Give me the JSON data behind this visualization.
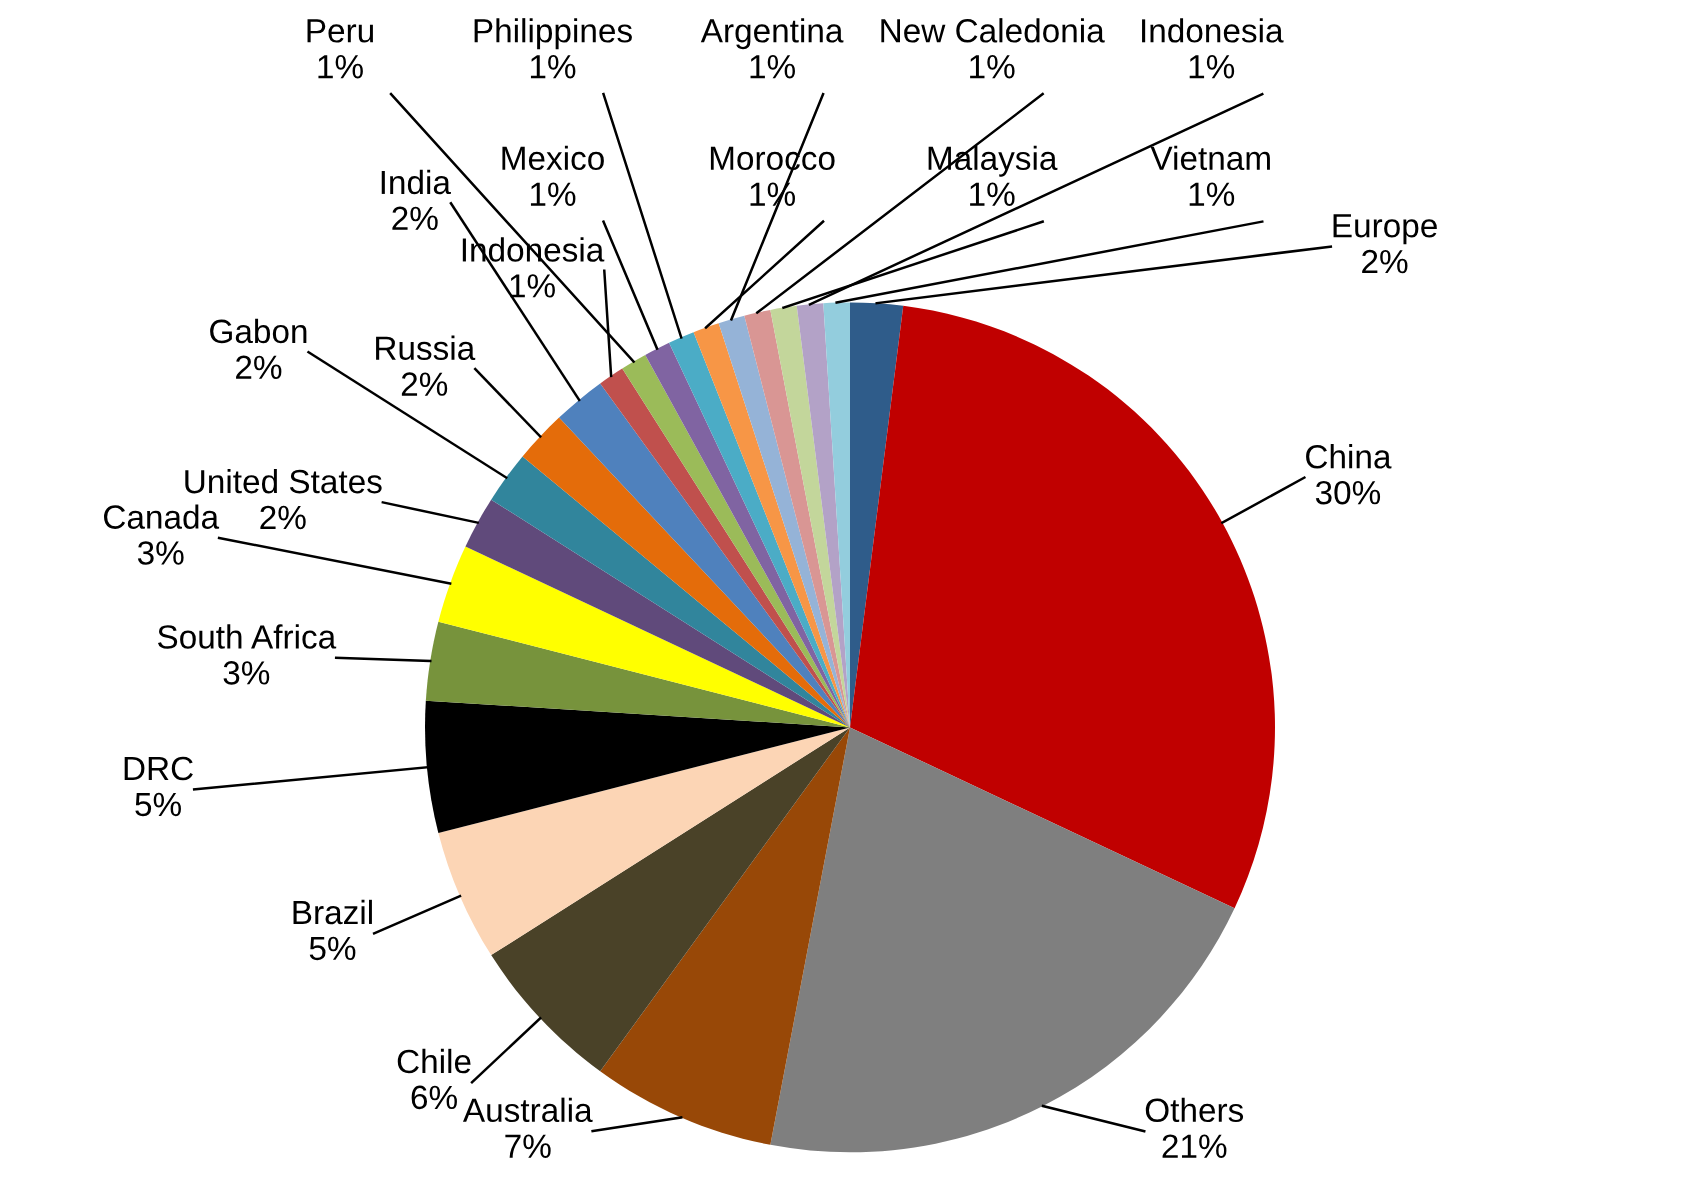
{
  "chart_data": {
    "type": "pie",
    "categories": [
      "Europe",
      "China",
      "Others",
      "Australia",
      "Chile",
      "Brazil",
      "DRC",
      "South Africa",
      "Canada",
      "United States",
      "Gabon",
      "Russia",
      "India",
      "Indonesia",
      "Peru",
      "Mexico",
      "Philippines",
      "Morocco",
      "Argentina",
      "New Caledonia",
      "Malaysia",
      "Indonesia",
      "Vietnam"
    ],
    "values": [
      2,
      30,
      21,
      7,
      6,
      5,
      5,
      3,
      3,
      2,
      2,
      2,
      2,
      1,
      1,
      1,
      1,
      1,
      1,
      1,
      1,
      1,
      1
    ],
    "value_labels": [
      "2%",
      "30%",
      "21%",
      "7%",
      "6%",
      "5%",
      "5%",
      "3%",
      "3%",
      "2%",
      "2%",
      "2%",
      "2%",
      "1%",
      "1%",
      "1%",
      "1%",
      "1%",
      "1%",
      "1%",
      "1%",
      "1%",
      "1%"
    ],
    "colors": [
      "#2f5c8a",
      "#c00000",
      "#7f7f7f",
      "#984807",
      "#4a4228",
      "#fcd5b5",
      "#000000",
      "#77933c",
      "#ffff00",
      "#604a7b",
      "#31859c",
      "#e46c0a",
      "#4f81bd",
      "#c0504d",
      "#9bbb59",
      "#8064a2",
      "#4bacc6",
      "#f79646",
      "#95b3d7",
      "#d99694",
      "#c3d69b",
      "#b3a2c7",
      "#93cddd"
    ]
  }
}
